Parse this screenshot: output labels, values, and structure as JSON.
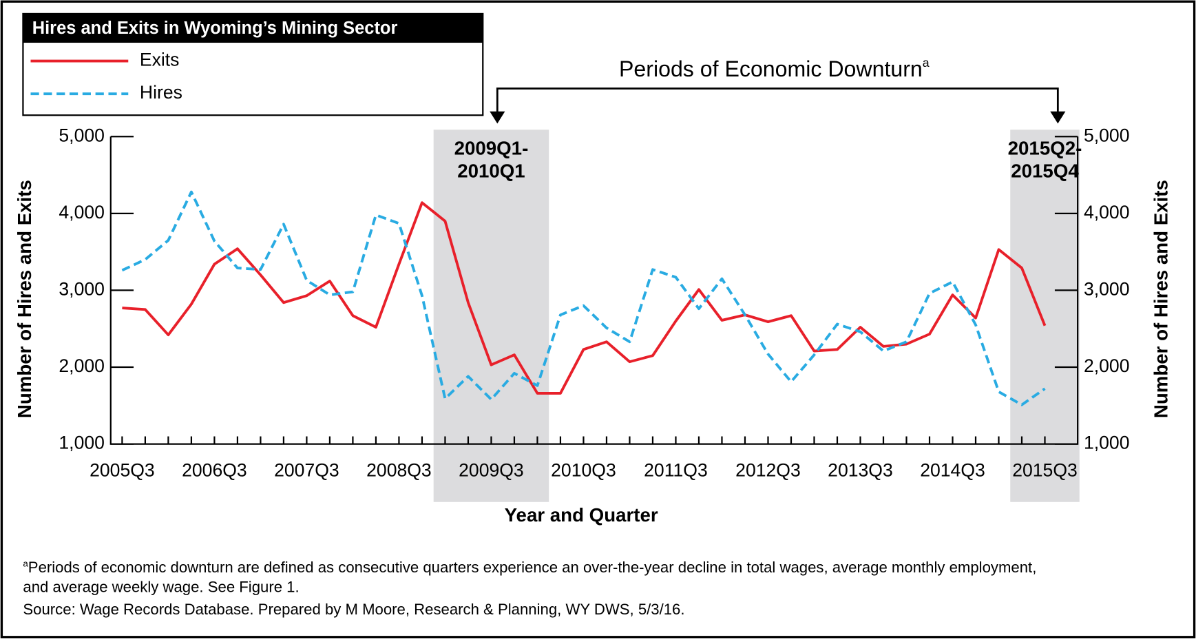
{
  "chart_data": {
    "type": "line",
    "title": "Hires and Exits in Wyoming’s Mining Sector",
    "annotation_title": "Periods of Economic Downturn",
    "annotation_mark": "a",
    "x_label": "Year and Quarter",
    "y_label": "Number of Hires and Exits",
    "y2_label": "Number of Hires and Exits",
    "categories": [
      "2005Q3",
      null,
      null,
      null,
      "2006Q3",
      null,
      null,
      null,
      "2007Q3",
      null,
      null,
      null,
      "2008Q3",
      null,
      null,
      null,
      "2009Q3",
      null,
      null,
      null,
      "2010Q3",
      null,
      null,
      null,
      "2011Q3",
      null,
      null,
      null,
      "2012Q3",
      null,
      null,
      null,
      "2013Q3",
      null,
      null,
      null,
      "2014Q3",
      null,
      null,
      null,
      "2015Q3"
    ],
    "series": [
      {
        "name": "Exits",
        "color": "#e8202a",
        "dash": false,
        "values": [
          2770,
          2750,
          2420,
          2820,
          3340,
          3540,
          3200,
          2840,
          2930,
          3120,
          2670,
          2520,
          3340,
          4140,
          3900,
          2840,
          2030,
          2160,
          1660,
          1660,
          2230,
          2330,
          2070,
          2150,
          2600,
          3010,
          2610,
          2680,
          2590,
          2670,
          2210,
          2230,
          2520,
          2270,
          2300,
          2430,
          2940,
          2640,
          3530,
          3290,
          2540
        ]
      },
      {
        "name": "Hires",
        "color": "#29abe2",
        "dash": true,
        "values": [
          3260,
          3400,
          3650,
          4280,
          3640,
          3290,
          3270,
          3860,
          3130,
          2940,
          2980,
          3980,
          3870,
          2930,
          1590,
          1880,
          1580,
          1920,
          1760,
          2680,
          2800,
          2510,
          2330,
          3270,
          3170,
          2760,
          3150,
          2680,
          2170,
          1810,
          2160,
          2560,
          2460,
          2210,
          2330,
          2960,
          3110,
          2550,
          1680,
          1510,
          1720
        ]
      }
    ],
    "shaded_periods": [
      {
        "lines": [
          "2009Q1-",
          "2010Q1"
        ]
      },
      {
        "lines": [
          "2015Q2-",
          "2015Q4"
        ]
      }
    ],
    "ylim": [
      1000,
      5000
    ],
    "yticks": [
      {
        "value": 1000,
        "label": "1,000"
      },
      {
        "value": 2000,
        "label": "2,000"
      },
      {
        "value": 3000,
        "label": "3,000"
      },
      {
        "value": 4000,
        "label": "4,000"
      },
      {
        "value": 5000,
        "label": "5,000"
      }
    ],
    "y2lim": [
      1000,
      5000
    ],
    "y2ticks": [
      {
        "value": 1000,
        "label": "1,000"
      },
      {
        "value": 2000,
        "label": "2,000"
      },
      {
        "value": 3000,
        "label": "3,000"
      },
      {
        "value": 4000,
        "label": "4,000"
      },
      {
        "value": 5000,
        "label": "5,000"
      }
    ],
    "footnote_mark": "a",
    "footnote_lines": [
      "Periods of economic downturn are defined as consecutive quarters experience an over-the-year decline in total wages, average monthly employment,",
      "and average weekly wage. See Figure 1."
    ],
    "source": "Source: Wage Records Database. Prepared by M Moore, Research & Planning, WY DWS, 5/3/16."
  }
}
